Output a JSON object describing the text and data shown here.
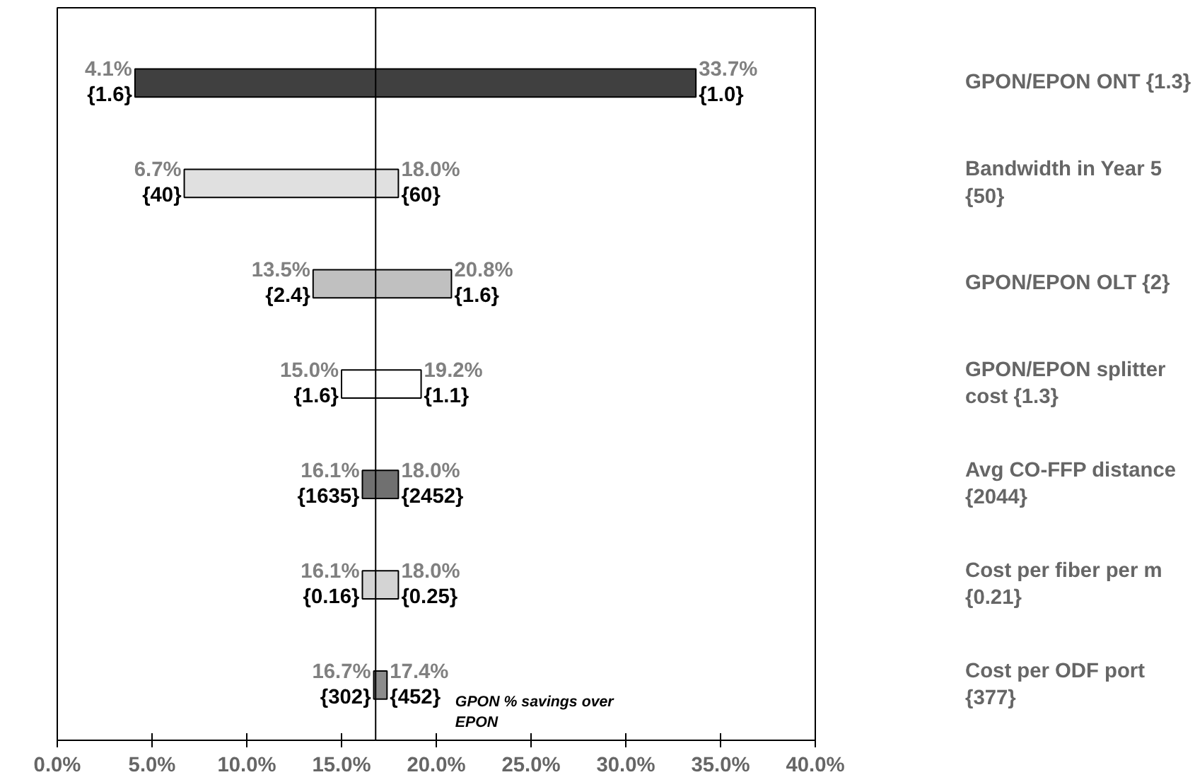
{
  "chart_data": {
    "type": "bar",
    "orientation": "horizontal",
    "categories": [
      "GPON/EPON ONT {1.3}",
      "Bandwidth in Year 5\n{50}",
      "GPON/EPON OLT {2}",
      "GPON/EPON splitter\ncost {1.3}",
      "Avg CO-FFP distance\n{2044}",
      "Cost per fiber per m\n{0.21}",
      "Cost per ODF port\n{377}"
    ],
    "base": [
      4.1,
      6.7,
      13.5,
      15.0,
      16.1,
      16.1,
      16.7
    ],
    "values": [
      29.6,
      11.3,
      7.3,
      4.2,
      1.9,
      1.9,
      0.7
    ],
    "colors": [
      "#404040",
      "#e0e0e0",
      "#c0c0c0",
      "#ffffff",
      "#707070",
      "#d4d4d4",
      "#8c8c8c"
    ],
    "xlim": [
      0,
      40
    ],
    "xticks": [
      {
        "value": 0,
        "label": "0.0%"
      },
      {
        "value": 5,
        "label": "5.0%"
      },
      {
        "value": 10,
        "label": "10.0%"
      },
      {
        "value": 15,
        "label": "15.0%"
      },
      {
        "value": 20,
        "label": "20.0%"
      },
      {
        "value": 25,
        "label": "25.0%"
      },
      {
        "value": 30,
        "label": "30.0%"
      },
      {
        "value": 35,
        "label": "35.0%"
      },
      {
        "value": 40,
        "label": "40.0%"
      }
    ],
    "xlabel": "GPON % savings over\nEPON",
    "ref_lines": [
      {
        "axis": "x",
        "value": 16.8,
        "color": "#000000"
      }
    ],
    "grid": false,
    "annotations": [
      {
        "text": "4.1%",
        "x": 4.1,
        "y": "GPON/EPON ONT {1.3}"
      },
      {
        "text": "{1.6}",
        "x": 4.1,
        "y": "GPON/EPON ONT {1.3}"
      },
      {
        "text": "33.7%",
        "x": 33.7,
        "y": "GPON/EPON ONT {1.3}"
      },
      {
        "text": "{1.0}",
        "x": 33.7,
        "y": "GPON/EPON ONT {1.3}"
      },
      {
        "text": "6.7%",
        "x": 6.7,
        "y": "Bandwidth in Year 5\n{50}"
      },
      {
        "text": "{40}",
        "x": 6.7,
        "y": "Bandwidth in Year 5\n{50}"
      },
      {
        "text": "18.0%",
        "x": 18.0,
        "y": "Bandwidth in Year 5\n{50}"
      },
      {
        "text": "{60}",
        "x": 18.0,
        "y": "Bandwidth in Year 5\n{50}"
      },
      {
        "text": "13.5%",
        "x": 13.5,
        "y": "GPON/EPON OLT {2}"
      },
      {
        "text": "{2.4}",
        "x": 13.5,
        "y": "GPON/EPON OLT {2}"
      },
      {
        "text": "20.8%",
        "x": 20.8,
        "y": "GPON/EPON OLT {2}"
      },
      {
        "text": "{1.6}",
        "x": 20.8,
        "y": "GPON/EPON OLT {2}"
      },
      {
        "text": "15.0%",
        "x": 15.0,
        "y": "GPON/EPON splitter\ncost {1.3}"
      },
      {
        "text": "{1.6}",
        "x": 15.0,
        "y": "GPON/EPON splitter\ncost {1.3}"
      },
      {
        "text": "19.2%",
        "x": 19.2,
        "y": "GPON/EPON splitter\ncost {1.3}"
      },
      {
        "text": "{1.1}",
        "x": 19.2,
        "y": "GPON/EPON splitter\ncost {1.3}"
      },
      {
        "text": "16.1%",
        "x": 16.1,
        "y": "Avg CO-FFP distance\n{2044}"
      },
      {
        "text": "{1635}",
        "x": 16.1,
        "y": "Avg CO-FFP distance\n{2044}"
      },
      {
        "text": "18.0%",
        "x": 18.0,
        "y": "Avg CO-FFP distance\n{2044}"
      },
      {
        "text": "{2452}",
        "x": 18.0,
        "y": "Avg CO-FFP distance\n{2044}"
      },
      {
        "text": "16.1%",
        "x": 16.1,
        "y": "Cost per fiber per m\n{0.21}"
      },
      {
        "text": "{0.16}",
        "x": 16.1,
        "y": "Cost per fiber per m\n{0.21}"
      },
      {
        "text": "18.0%",
        "x": 18.0,
        "y": "Cost per fiber per m\n{0.21}"
      },
      {
        "text": "{0.25}",
        "x": 18.0,
        "y": "Cost per fiber per m\n{0.21}"
      },
      {
        "text": "16.7%",
        "x": 16.7,
        "y": "Cost per ODF port\n{377}"
      },
      {
        "text": "{302}",
        "x": 16.7,
        "y": "Cost per ODF port\n{377}"
      },
      {
        "text": "17.4%",
        "x": 17.4,
        "y": "Cost per ODF port\n{377}"
      },
      {
        "text": "{452}",
        "x": 17.4,
        "y": "Cost per ODF port\n{377}"
      }
    ]
  }
}
